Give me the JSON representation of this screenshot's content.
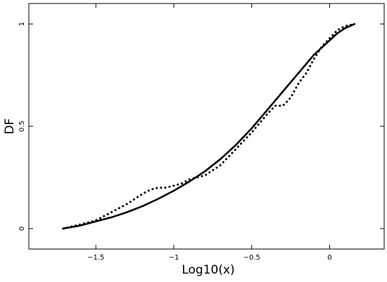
{
  "chart_data": {
    "type": "line",
    "xlabel": "Log10(x)",
    "ylabel": "DF",
    "xlim": [
      -1.93,
      0.35
    ],
    "ylim": [
      -0.1,
      1.1
    ],
    "x_ticks": [
      {
        "value": -1.5,
        "label": "−1.5"
      },
      {
        "value": -1.0,
        "label": "−1"
      },
      {
        "value": -0.5,
        "label": "−0.5"
      },
      {
        "value": 0.0,
        "label": "0"
      }
    ],
    "y_ticks": [
      {
        "value": 0,
        "label": "0"
      },
      {
        "value": 0.5,
        "label": "0.5"
      },
      {
        "value": 1,
        "label": "1"
      }
    ],
    "grid": false,
    "series": [
      {
        "style": "dotted",
        "x": [
          -1.71,
          -1.6,
          -1.5,
          -1.4,
          -1.3,
          -1.2,
          -1.15,
          -1.1,
          -1.05,
          -1.0,
          -0.95,
          -0.9,
          -0.85,
          -0.8,
          -0.7,
          -0.6,
          -0.5,
          -0.4,
          -0.35,
          -0.3,
          -0.25,
          -0.2,
          -0.15,
          -0.1,
          -0.05,
          0.0,
          0.05,
          0.1,
          0.16
        ],
        "y": [
          0.0,
          0.02,
          0.04,
          0.08,
          0.12,
          0.17,
          0.19,
          0.2,
          0.2,
          0.21,
          0.22,
          0.24,
          0.25,
          0.26,
          0.31,
          0.39,
          0.47,
          0.56,
          0.6,
          0.6,
          0.64,
          0.71,
          0.76,
          0.83,
          0.89,
          0.93,
          0.97,
          0.99,
          1.0
        ]
      },
      {
        "style": "solid",
        "x": [
          -1.71,
          -1.6,
          -1.5,
          -1.4,
          -1.3,
          -1.2,
          -1.1,
          -1.0,
          -0.9,
          -0.8,
          -0.7,
          -0.6,
          -0.5,
          -0.4,
          -0.3,
          -0.2,
          -0.1,
          0.0,
          0.05,
          0.1,
          0.16
        ],
        "y": [
          0.0,
          0.015,
          0.035,
          0.055,
          0.08,
          0.11,
          0.145,
          0.185,
          0.23,
          0.28,
          0.34,
          0.41,
          0.49,
          0.58,
          0.67,
          0.76,
          0.85,
          0.92,
          0.955,
          0.98,
          1.0
        ]
      }
    ]
  }
}
